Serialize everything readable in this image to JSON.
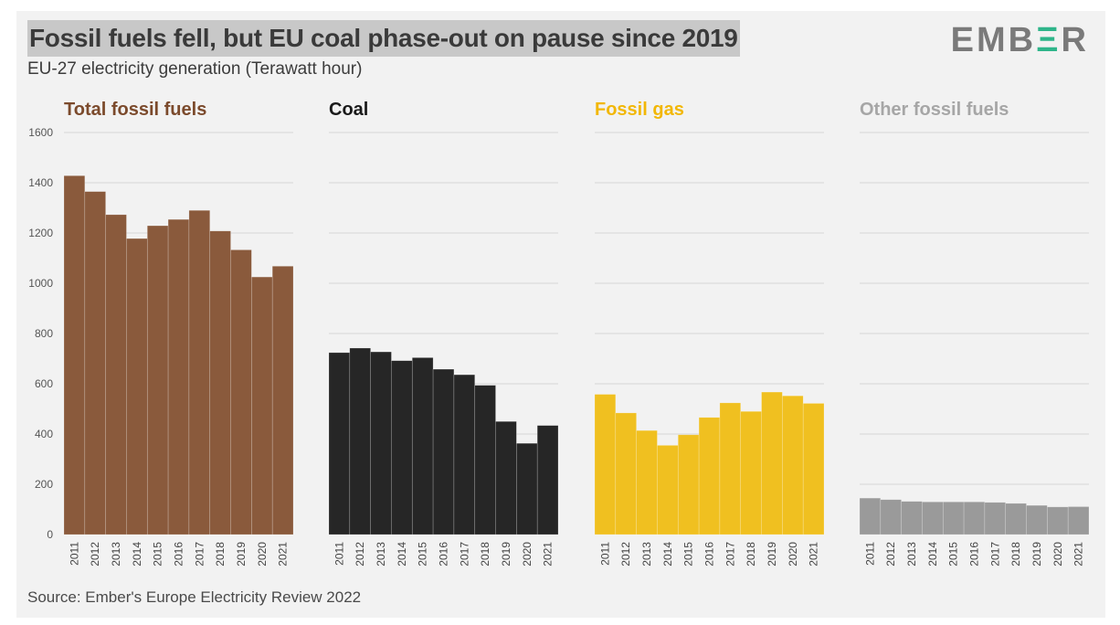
{
  "header": {
    "title": "Fossil fuels fell, but EU coal phase-out on pause since 2019",
    "subtitle": "EU-27 electricity generation (Terawatt hour)",
    "logo_main": "EMB",
    "logo_accent": "Ξ",
    "logo_end": "R"
  },
  "footer": {
    "source": "Source: Ember's Europe Electricity Review 2022"
  },
  "chart_data": {
    "type": "bar",
    "title": "Fossil fuels fell, but EU coal phase-out on pause since 2019",
    "subtitle": "EU-27 electricity generation (Terawatt hour)",
    "ylim": [
      0,
      1600
    ],
    "yticks": [
      0,
      200,
      400,
      600,
      800,
      1000,
      1200,
      1400,
      1600
    ],
    "grid": true,
    "categories": [
      "2011",
      "2012",
      "2013",
      "2014",
      "2015",
      "2016",
      "2017",
      "2018",
      "2019",
      "2020",
      "2021"
    ],
    "series": [
      {
        "name": "Total fossil fuels",
        "color": "#8a5a3c",
        "title_color": "#7b4a2c",
        "values": [
          1428,
          1365,
          1273,
          1178,
          1229,
          1254,
          1290,
          1208,
          1133,
          1025,
          1068
        ]
      },
      {
        "name": "Coal",
        "color": "#262626",
        "title_color": "#1a1a1a",
        "values": [
          724,
          742,
          727,
          692,
          704,
          658,
          636,
          594,
          450,
          363,
          434
        ]
      },
      {
        "name": "Fossil gas",
        "color": "#f0c020",
        "title_color": "#f2b705",
        "values": [
          558,
          484,
          414,
          355,
          397,
          466,
          524,
          490,
          567,
          552,
          522
        ]
      },
      {
        "name": "Other fossil fuels",
        "color": "#9a9a9a",
        "title_color": "#a6a6a6",
        "values": [
          145,
          139,
          132,
          130,
          130,
          130,
          128,
          124,
          116,
          110,
          111
        ]
      }
    ]
  }
}
